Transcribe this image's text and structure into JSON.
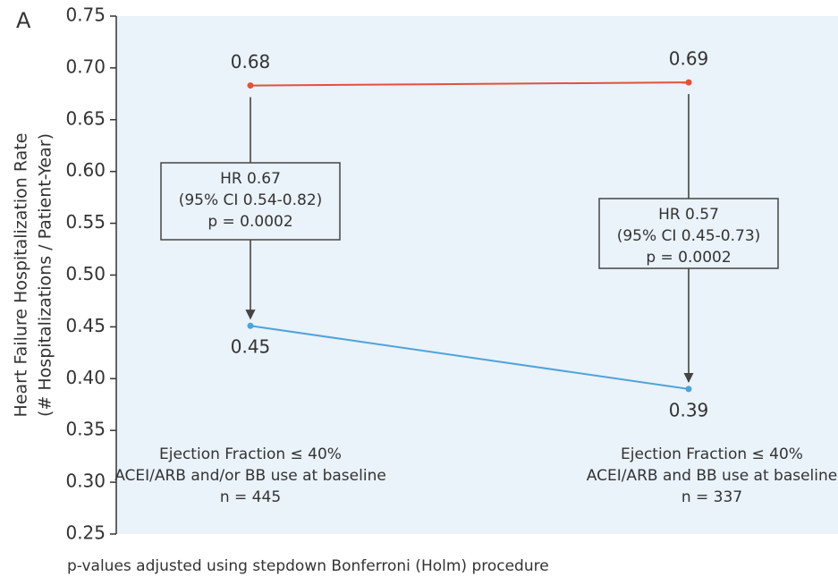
{
  "chart_data": {
    "type": "line",
    "panel_label": "A",
    "y_label": [
      "Heart Failure Hospitalization Rate",
      "(# Hospitalizations / Patient-Year)"
    ],
    "categories": [
      [
        "Ejection Fraction ≤ 40%",
        "ACEI/ARB and/or BB use at baseline",
        "n = 445"
      ],
      [
        "Ejection Fraction ≤ 40%",
        "ACEI/ARB and BB use at baseline",
        "n = 337"
      ]
    ],
    "series": [
      {
        "color": "#e0533a",
        "values": [
          0.683,
          0.686
        ],
        "value_labels": [
          "0.68",
          "0.69"
        ]
      },
      {
        "color": "#4fa3d9",
        "values": [
          0.451,
          0.39
        ],
        "value_labels": [
          "0.45",
          "0.39"
        ]
      }
    ],
    "annotations": [
      [
        "HR 0.67",
        "(95% CI 0.54-0.82)",
        "p = 0.0002"
      ],
      [
        "HR 0.57",
        "(95% CI 0.45-0.73)",
        "p = 0.0002"
      ]
    ],
    "ylim": [
      0.25,
      0.75
    ],
    "yticks": [
      {
        "value": 0.25,
        "label": "0.25"
      },
      {
        "value": 0.3,
        "label": "0.30"
      },
      {
        "value": 0.35,
        "label": "0.35"
      },
      {
        "value": 0.4,
        "label": "0.40"
      },
      {
        "value": 0.45,
        "label": "0.45"
      },
      {
        "value": 0.5,
        "label": "0.50"
      },
      {
        "value": 0.55,
        "label": "0.55"
      },
      {
        "value": 0.6,
        "label": "0.60"
      },
      {
        "value": 0.65,
        "label": "0.65"
      },
      {
        "value": 0.7,
        "label": "0.70"
      },
      {
        "value": 0.75,
        "label": "0.75"
      }
    ],
    "background": "#eaf2fa",
    "footnote": "p-values adjusted using stepdown Bonferroni (Holm) procedure"
  }
}
